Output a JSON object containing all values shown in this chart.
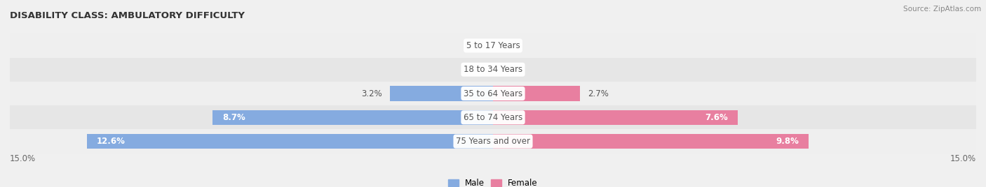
{
  "title": "DISABILITY CLASS: AMBULATORY DIFFICULTY",
  "source": "Source: ZipAtlas.com",
  "categories": [
    "5 to 17 Years",
    "18 to 34 Years",
    "35 to 64 Years",
    "65 to 74 Years",
    "75 Years and over"
  ],
  "male_values": [
    0.0,
    0.0,
    3.2,
    8.7,
    12.6
  ],
  "female_values": [
    0.0,
    0.0,
    2.7,
    7.6,
    9.8
  ],
  "xlim": 15.0,
  "male_color": "#85abe0",
  "female_color": "#e87fa0",
  "label_color": "#555555",
  "title_color": "#333333",
  "axis_label_color": "#666666",
  "legend_male_color": "#85abe0",
  "legend_female_color": "#e87fa0",
  "bar_height": 0.62,
  "label_fontsize": 8.5,
  "title_fontsize": 9.5,
  "source_fontsize": 7.5,
  "row_colors": [
    "#efefef",
    "#e6e6e6"
  ]
}
